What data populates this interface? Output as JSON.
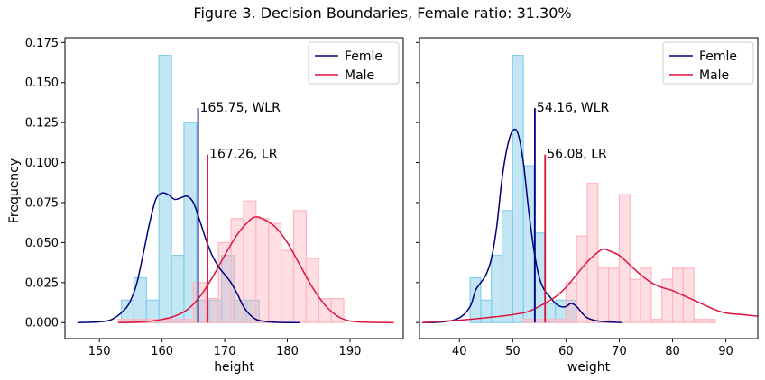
{
  "figure": {
    "title": "Figure 3. Decision Boundaries, Female ratio: 31.30%",
    "ylabel": "Frequency"
  },
  "colors": {
    "female_line": "#000080",
    "male_line": "#dc143c",
    "female_hist": "#87ceeb",
    "male_hist": "#ffb6c1",
    "boundary_wlr": "#000080",
    "boundary_lr": "#dc143c"
  },
  "chart_data": [
    {
      "type": "histogram",
      "xlabel": "height",
      "ylabel": "Frequency",
      "xlim": [
        144.5,
        198.5
      ],
      "ylim": [
        -0.01,
        0.178
      ],
      "xticks": [
        150,
        160,
        170,
        180,
        190
      ],
      "yticks": [
        0.0,
        0.025,
        0.05,
        0.075,
        0.1,
        0.125,
        0.15,
        0.175
      ],
      "ytick_labels": [
        "0.000",
        "0.025",
        "0.050",
        "0.075",
        "0.100",
        "0.125",
        "0.150",
        "0.175"
      ],
      "legend": {
        "position": "top-right",
        "entries": [
          "Femle",
          "Male"
        ]
      },
      "female_hist": {
        "bins": [
          [
            153.5,
            155.5,
            0.014
          ],
          [
            155.5,
            157.5,
            0.028
          ],
          [
            157.5,
            159.5,
            0.014
          ],
          [
            159.5,
            161.5,
            0.167
          ],
          [
            161.5,
            163.5,
            0.042
          ],
          [
            163.5,
            165.5,
            0.125
          ],
          [
            165.5,
            167.5,
            0.014
          ],
          [
            167.5,
            169.5,
            0.014
          ],
          [
            169.5,
            171.5,
            0.042
          ],
          [
            171.5,
            173.5,
            0.014
          ],
          [
            173.5,
            175.5,
            0.014
          ]
        ]
      },
      "male_hist": {
        "bins": [
          [
            153,
            155,
            0.002
          ],
          [
            155,
            157,
            0.002
          ],
          [
            157,
            159,
            0.002
          ],
          [
            159,
            161,
            0.002
          ],
          [
            161,
            163,
            0.002
          ],
          [
            163,
            165,
            0.002
          ],
          [
            165,
            167,
            0.025
          ],
          [
            167,
            169,
            0.015
          ],
          [
            169,
            171,
            0.05
          ],
          [
            171,
            173,
            0.065
          ],
          [
            173,
            175,
            0.076
          ],
          [
            175,
            177,
            0.065
          ],
          [
            177,
            179,
            0.062
          ],
          [
            179,
            181,
            0.045
          ],
          [
            181,
            183,
            0.07
          ],
          [
            183,
            185,
            0.04
          ],
          [
            185,
            187,
            0.015
          ],
          [
            187,
            189,
            0.015
          ],
          [
            189,
            191,
            0.0
          ],
          [
            191,
            193,
            0.0
          ]
        ]
      },
      "female_kde": {
        "x": [
          146.5,
          150,
          152,
          154,
          155,
          156,
          157,
          158,
          159,
          160,
          161,
          162,
          163,
          164,
          165,
          166,
          167,
          168,
          169,
          170,
          171,
          172,
          173,
          174,
          175,
          176,
          177,
          178,
          180,
          182
        ],
        "y": [
          0.0,
          0.0005,
          0.002,
          0.008,
          0.014,
          0.025,
          0.043,
          0.062,
          0.077,
          0.081,
          0.08,
          0.077,
          0.078,
          0.079,
          0.075,
          0.064,
          0.052,
          0.042,
          0.035,
          0.03,
          0.025,
          0.018,
          0.01,
          0.005,
          0.002,
          0.001,
          0.0005,
          0.0002,
          0.0,
          0.0
        ]
      },
      "male_kde": {
        "x": [
          153,
          156,
          158,
          160,
          162,
          164,
          166,
          168,
          170,
          172,
          174,
          175,
          176,
          178,
          180,
          182,
          184,
          186,
          188,
          190,
          193,
          197
        ],
        "y": [
          0.0,
          0.0003,
          0.0008,
          0.002,
          0.004,
          0.008,
          0.016,
          0.028,
          0.042,
          0.055,
          0.064,
          0.066,
          0.065,
          0.06,
          0.05,
          0.036,
          0.022,
          0.011,
          0.004,
          0.001,
          0.0002,
          0.0
        ]
      },
      "boundaries": [
        {
          "label": "165.75, WLR",
          "x": 165.75,
          "top": 0.134,
          "color_key": "boundary_wlr"
        },
        {
          "label": "167.26, LR",
          "x": 167.26,
          "top": 0.105,
          "color_key": "boundary_lr"
        }
      ]
    },
    {
      "type": "histogram",
      "xlabel": "weight",
      "ylabel": "",
      "xlim": [
        32.5,
        96
      ],
      "ylim": [
        -0.01,
        0.178
      ],
      "xticks": [
        40,
        50,
        60,
        70,
        80,
        90
      ],
      "yticks": [
        0.0,
        0.025,
        0.05,
        0.075,
        0.1,
        0.125,
        0.15,
        0.175
      ],
      "legend": {
        "position": "top-right",
        "entries": [
          "Femle",
          "Male"
        ]
      },
      "female_hist": {
        "bins": [
          [
            42,
            44,
            0.028
          ],
          [
            44,
            46,
            0.014
          ],
          [
            46,
            48,
            0.042
          ],
          [
            48,
            50,
            0.07
          ],
          [
            50,
            52,
            0.167
          ],
          [
            52,
            54,
            0.098
          ],
          [
            54,
            56,
            0.056
          ],
          [
            56,
            58,
            0.012
          ],
          [
            58,
            60,
            0.014
          ],
          [
            60,
            62,
            0.014
          ]
        ]
      },
      "male_hist": {
        "bins": [
          [
            52,
            54,
            0.002
          ],
          [
            54,
            56,
            0.002
          ],
          [
            56,
            58,
            0.002
          ],
          [
            58,
            60,
            0.002
          ],
          [
            60,
            62,
            0.025
          ],
          [
            62,
            64,
            0.054
          ],
          [
            64,
            66,
            0.087
          ],
          [
            66,
            68,
            0.034
          ],
          [
            68,
            70,
            0.034
          ],
          [
            70,
            72,
            0.08
          ],
          [
            72,
            74,
            0.027
          ],
          [
            74,
            76,
            0.034
          ],
          [
            76,
            78,
            0.002
          ],
          [
            78,
            80,
            0.027
          ],
          [
            80,
            82,
            0.034
          ],
          [
            82,
            84,
            0.034
          ],
          [
            84,
            86,
            0.002
          ],
          [
            86,
            88,
            0.002
          ]
        ]
      },
      "female_kde": {
        "x": [
          33,
          37,
          40,
          42,
          43,
          44,
          45,
          46,
          47,
          48,
          49,
          50,
          51,
          52,
          53,
          54,
          55,
          56,
          57,
          58,
          59,
          60,
          61,
          62,
          63,
          64,
          66,
          70.5
        ],
        "y": [
          0.0,
          0.0005,
          0.003,
          0.01,
          0.02,
          0.025,
          0.03,
          0.04,
          0.06,
          0.09,
          0.11,
          0.12,
          0.118,
          0.1,
          0.07,
          0.045,
          0.028,
          0.02,
          0.016,
          0.012,
          0.01,
          0.01,
          0.012,
          0.01,
          0.006,
          0.003,
          0.001,
          0.0
        ]
      },
      "male_kde": {
        "x": [
          33,
          40,
          45,
          50,
          53,
          56,
          58,
          60,
          62,
          64,
          66,
          67,
          68,
          70,
          72,
          74,
          76,
          78,
          80,
          82,
          84,
          86,
          88,
          90,
          93,
          96
        ],
        "y": [
          0.0,
          0.0015,
          0.003,
          0.005,
          0.007,
          0.012,
          0.016,
          0.022,
          0.03,
          0.038,
          0.044,
          0.046,
          0.045,
          0.042,
          0.036,
          0.03,
          0.025,
          0.022,
          0.02,
          0.017,
          0.014,
          0.011,
          0.008,
          0.006,
          0.005,
          0.004
        ]
      },
      "boundaries": [
        {
          "label": "54.16, WLR",
          "x": 54.16,
          "top": 0.134,
          "color_key": "boundary_wlr"
        },
        {
          "label": "56.08, LR",
          "x": 56.08,
          "top": 0.105,
          "color_key": "boundary_lr"
        }
      ]
    }
  ]
}
